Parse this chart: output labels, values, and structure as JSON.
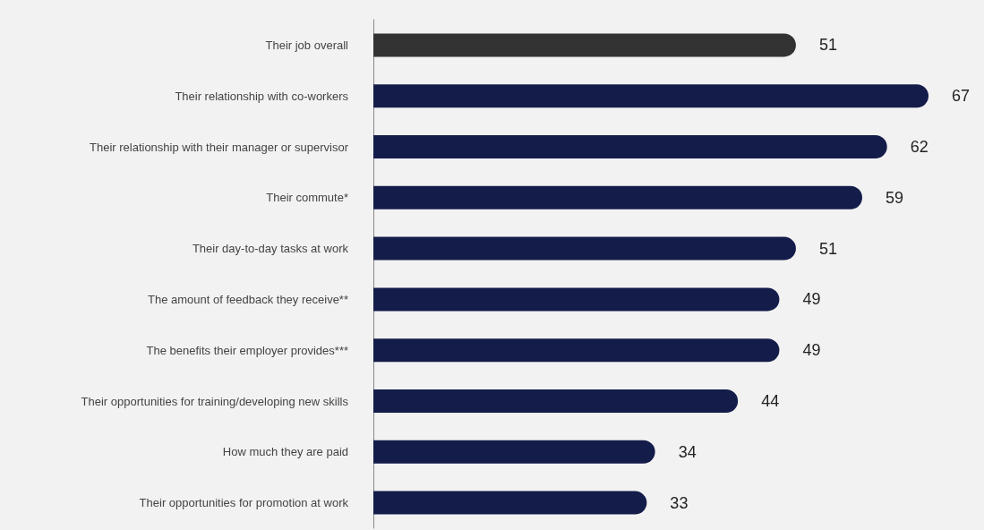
{
  "chart_data": {
    "type": "bar",
    "orientation": "horizontal",
    "data_labels": true,
    "categories": [
      "Their job overall",
      "Their relationship with co-workers",
      "Their relationship with their manager or supervisor",
      "Their commute*",
      "Their day-to-day tasks at work",
      "The amount of feedback they receive**",
      "The benefits their employer provides***",
      "Their opportunities for training/developing new skills",
      "How much they are paid",
      "Their opportunities for promotion at work"
    ],
    "values": [
      51,
      67,
      62,
      59,
      51,
      49,
      49,
      44,
      34,
      33
    ],
    "colors": [
      "#333333",
      "#141c4a",
      "#141c4a",
      "#141c4a",
      "#141c4a",
      "#141c4a",
      "#141c4a",
      "#141c4a",
      "#141c4a",
      "#141c4a"
    ]
  }
}
